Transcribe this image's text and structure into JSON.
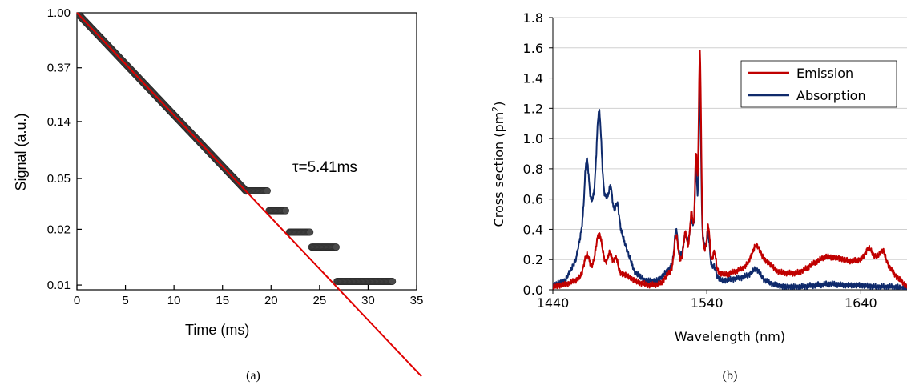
{
  "chart_data": [
    {
      "panel_label": "(a)",
      "type": "scatter",
      "xlabel": "Time (ms)",
      "ylabel": "Signal (a.u.)",
      "xlim": [
        0,
        35
      ],
      "ylim_log": [
        0.0067,
        1.0
      ],
      "y_scale": "log",
      "x_ticks": [
        0,
        5,
        10,
        15,
        20,
        25,
        30,
        35
      ],
      "y_ticks": [
        {
          "label": "1.00",
          "value": 1.0
        },
        {
          "label": "0.37",
          "value": 0.37
        },
        {
          "label": "0.14",
          "value": 0.14
        },
        {
          "label": "0.05",
          "value": 0.05
        },
        {
          "label": "0.02",
          "value": 0.02
        },
        {
          "label": "0.01",
          "value": 0.0073
        }
      ],
      "annotation": "τ=5.41ms",
      "series": [
        {
          "kind": "measured points",
          "color": "#4a4a4a",
          "smooth": {
            "x_from": 0,
            "x_to": 17.5,
            "tau_ms": 5.41
          },
          "plateaus": [
            {
              "x_from": 17.5,
              "x_to": 19.7,
              "y": 0.04
            },
            {
              "x_from": 19.8,
              "x_to": 21.6,
              "y": 0.028
            },
            {
              "x_from": 21.9,
              "x_to": 24.1,
              "y": 0.019
            },
            {
              "x_from": 24.2,
              "x_to": 26.8,
              "y": 0.0145
            },
            {
              "x_from": 26.8,
              "x_to": 32.6,
              "y": 0.0078
            }
          ]
        },
        {
          "kind": "exponential fit",
          "color": "#e00000",
          "tau_ms": 5.41,
          "x": [
            0,
            35.5
          ],
          "y": [
            1.0,
            0.0014
          ]
        }
      ]
    },
    {
      "panel_label": "(b)",
      "type": "line",
      "xlabel": "Wavelength (nm)",
      "ylabel_text": "Cross section (pm",
      "ylabel_sup": "2",
      "ylabel_close": ")",
      "xlim": [
        1440,
        1670
      ],
      "ylim": [
        0,
        1.8
      ],
      "x_ticks": [
        1440,
        1540,
        1640
      ],
      "y_ticks": [
        "0.0",
        "0.2",
        "0.4",
        "0.6",
        "0.8",
        "1.0",
        "1.2",
        "1.4",
        "1.6",
        "1.8"
      ],
      "grid": "horizontal",
      "legend_position": "top-right",
      "series": [
        {
          "name": "Emission",
          "color": "#c00000",
          "baseline": [
            [
              1440,
              0.02
            ],
            [
              1450,
              0.04
            ],
            [
              1458,
              0.08
            ],
            [
              1470,
              0.14
            ],
            [
              1478,
              0.12
            ],
            [
              1487,
              0.1
            ],
            [
              1495,
              0.05
            ],
            [
              1503,
              0.03
            ],
            [
              1510,
              0.04
            ],
            [
              1516,
              0.12
            ],
            [
              1522,
              0.18
            ],
            [
              1528,
              0.25
            ],
            [
              1533,
              0.35
            ],
            [
              1537,
              0.3
            ],
            [
              1542,
              0.2
            ],
            [
              1547,
              0.12
            ],
            [
              1552,
              0.1
            ],
            [
              1558,
              0.12
            ],
            [
              1563,
              0.14
            ],
            [
              1568,
              0.18
            ],
            [
              1575,
              0.2
            ],
            [
              1580,
              0.18
            ],
            [
              1586,
              0.12
            ],
            [
              1592,
              0.11
            ],
            [
              1598,
              0.11
            ],
            [
              1603,
              0.13
            ],
            [
              1610,
              0.18
            ],
            [
              1617,
              0.22
            ],
            [
              1625,
              0.21
            ],
            [
              1633,
              0.19
            ],
            [
              1640,
              0.2
            ],
            [
              1648,
              0.22
            ],
            [
              1655,
              0.21
            ],
            [
              1662,
              0.1
            ],
            [
              1670,
              0.02
            ]
          ],
          "peaks": [
            [
              1462,
              0.13,
              1.8
            ],
            [
              1470,
              0.23,
              2.2
            ],
            [
              1477,
              0.12,
              1.5
            ],
            [
              1481,
              0.1,
              1.2
            ],
            [
              1520,
              0.2,
              1.2
            ],
            [
              1526,
              0.15,
              1.0
            ],
            [
              1530,
              0.22,
              1.0
            ],
            [
              1533,
              0.55,
              0.7
            ],
            [
              1535.5,
              1.25,
              0.8
            ],
            [
              1541,
              0.2,
              0.9
            ],
            [
              1545,
              0.1,
              0.9
            ],
            [
              1572,
              0.1,
              2.5
            ],
            [
              1645,
              0.06,
              2.0
            ],
            [
              1654,
              0.05,
              1.5
            ]
          ]
        },
        {
          "name": "Absorption",
          "color": "#0f2a6b",
          "baseline": [
            [
              1440,
              0.03
            ],
            [
              1448,
              0.06
            ],
            [
              1455,
              0.2
            ],
            [
              1461,
              0.52
            ],
            [
              1466,
              0.58
            ],
            [
              1470,
              0.6
            ],
            [
              1476,
              0.56
            ],
            [
              1481,
              0.5
            ],
            [
              1487,
              0.3
            ],
            [
              1493,
              0.12
            ],
            [
              1500,
              0.06
            ],
            [
              1508,
              0.06
            ],
            [
              1514,
              0.12
            ],
            [
              1520,
              0.2
            ],
            [
              1526,
              0.25
            ],
            [
              1532,
              0.35
            ],
            [
              1536,
              0.38
            ],
            [
              1540,
              0.25
            ],
            [
              1545,
              0.1
            ],
            [
              1550,
              0.06
            ],
            [
              1556,
              0.07
            ],
            [
              1562,
              0.08
            ],
            [
              1568,
              0.1
            ],
            [
              1575,
              0.08
            ],
            [
              1582,
              0.04
            ],
            [
              1590,
              0.02
            ],
            [
              1600,
              0.02
            ],
            [
              1610,
              0.03
            ],
            [
              1620,
              0.04
            ],
            [
              1630,
              0.03
            ],
            [
              1640,
              0.03
            ],
            [
              1650,
              0.02
            ],
            [
              1660,
              0.02
            ],
            [
              1670,
              0.01
            ]
          ],
          "peaks": [
            [
              1462,
              0.33,
              1.3
            ],
            [
              1470,
              0.58,
              1.6
            ],
            [
              1475,
              0.04,
              1.0
            ],
            [
              1477.5,
              0.14,
              1.0
            ],
            [
              1482,
              0.1,
              1.0
            ],
            [
              1520,
              0.2,
              1.0
            ],
            [
              1526,
              0.12,
              1.0
            ],
            [
              1530,
              0.15,
              1.0
            ],
            [
              1533,
              0.45,
              0.7
            ],
            [
              1535.5,
              0.98,
              0.7
            ],
            [
              1541,
              0.15,
              0.8
            ],
            [
              1545,
              0.05,
              0.8
            ],
            [
              1572,
              0.05,
              2.0
            ]
          ]
        }
      ]
    }
  ]
}
